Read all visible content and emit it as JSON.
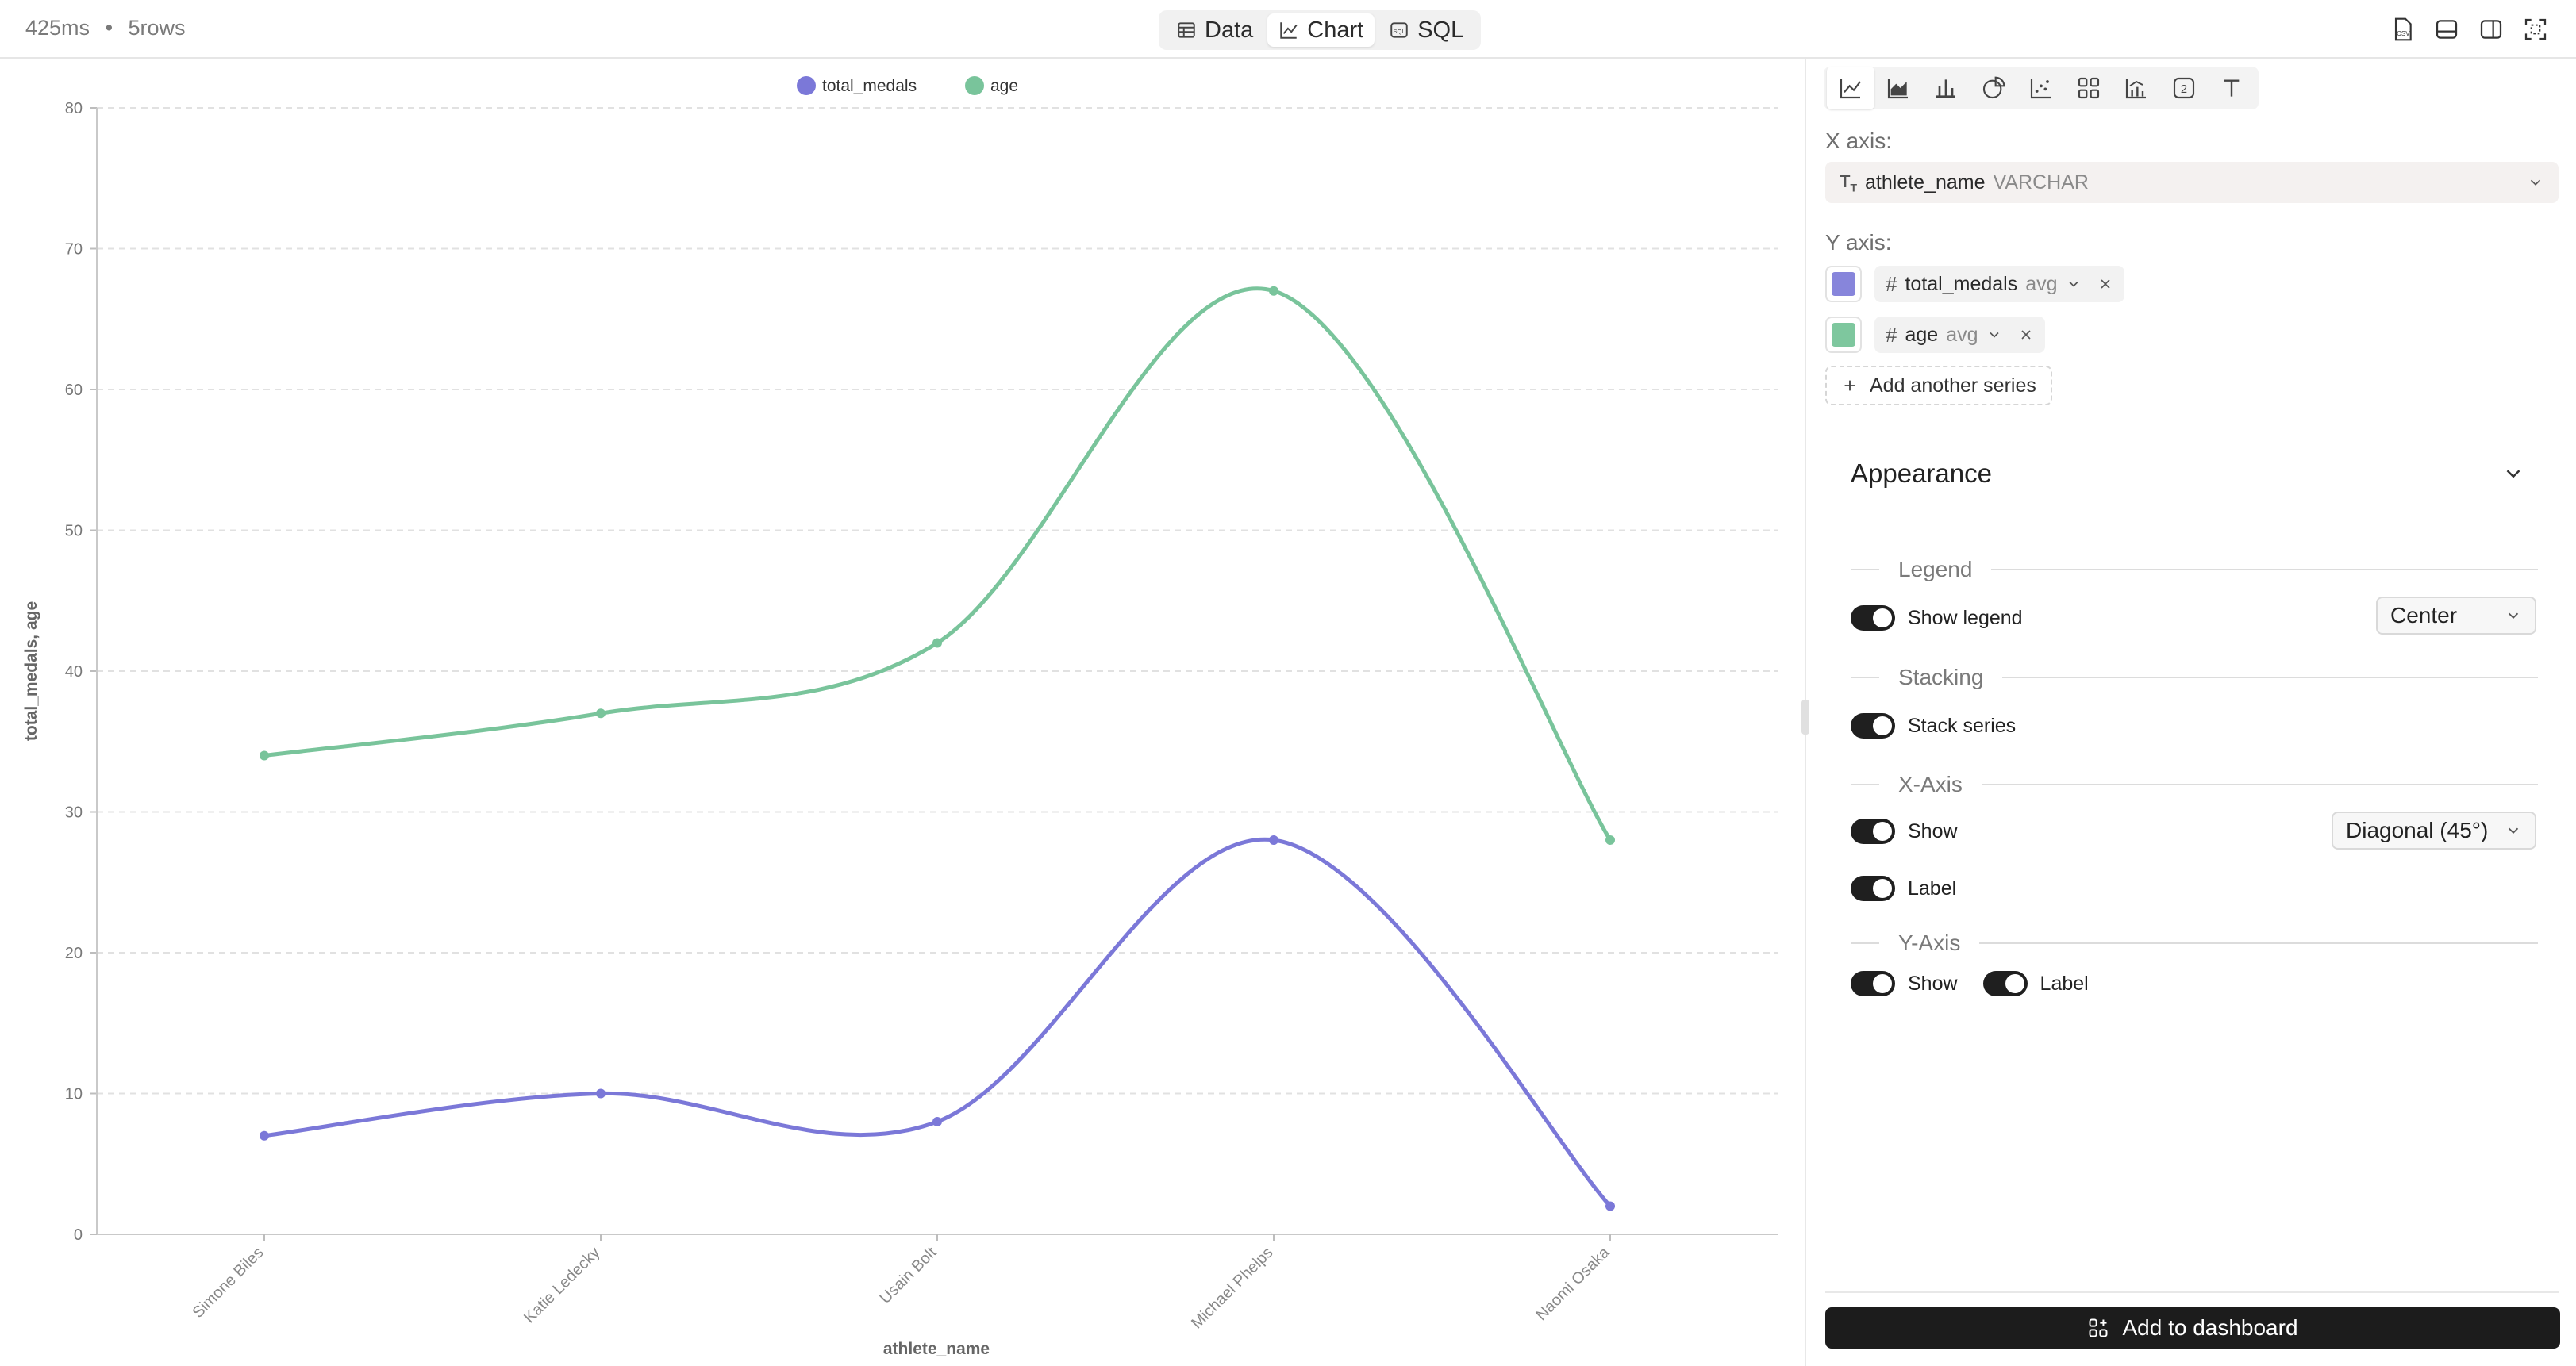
{
  "topbar": {
    "duration": "425ms",
    "separator": "•",
    "rows": "5rows",
    "tabs": [
      {
        "label": "Data",
        "icon": "table-icon"
      },
      {
        "label": "Chart",
        "icon": "line-chart-icon"
      },
      {
        "label": "SQL",
        "icon": "sql-icon"
      }
    ],
    "active_tab": "Chart",
    "right_icons": [
      "csv-download-icon",
      "bottom-panel-icon",
      "side-panel-icon",
      "fullscreen-icon"
    ]
  },
  "chart_data": {
    "type": "line",
    "curve": "smooth",
    "categories": [
      "Simone Biles",
      "Katie Ledecky",
      "Usain Bolt",
      "Michael Phelps",
      "Naomi Osaka"
    ],
    "series": [
      {
        "name": "total_medals",
        "values": [
          7,
          10,
          8,
          28,
          2
        ],
        "color": "#7b78d8"
      },
      {
        "name": "age",
        "values": [
          34,
          37,
          42,
          67,
          28
        ],
        "color": "#79c49b"
      }
    ],
    "xlabel": "athlete_name",
    "ylabel": "total_medals, age",
    "ylim": [
      0,
      80
    ],
    "yticks": [
      0,
      10,
      20,
      30,
      40,
      50,
      60,
      70,
      80
    ],
    "x_tick_rotation_deg": -45,
    "grid": "horizontal dashed",
    "legend": "top-center"
  },
  "panel": {
    "chart_type_icons": [
      "line-chart-icon",
      "area-chart-icon",
      "bar-chart-icon",
      "pie-chart-icon",
      "scatter-chart-icon",
      "grid-chart-icon",
      "combo-chart-icon",
      "number-icon",
      "text-icon"
    ],
    "active_chart_type": "line-chart-icon",
    "x_axis": {
      "label": "X axis:",
      "field": "athlete_name",
      "type": "VARCHAR"
    },
    "y_axis": {
      "label": "Y axis:",
      "series": [
        {
          "field": "total_medals",
          "agg": "avg",
          "color": "#8785db"
        },
        {
          "field": "age",
          "agg": "avg",
          "color": "#7ec79e"
        }
      ]
    },
    "add_series": "Add another series",
    "appearance": {
      "title": "Appearance",
      "legend": {
        "heading": "Legend",
        "show_label": "Show legend",
        "show": true,
        "position": "Center"
      },
      "stacking": {
        "heading": "Stacking",
        "label": "Stack series",
        "on": true
      },
      "x_axis": {
        "heading": "X-Axis",
        "show_label": "Show",
        "show": true,
        "label_label": "Label",
        "label": true,
        "rotation": "Diagonal (45°)"
      },
      "y_axis": {
        "heading": "Y-Axis",
        "show_label": "Show",
        "show": true,
        "label_label": "Label",
        "label": true
      }
    },
    "add_dashboard": "Add to dashboard"
  }
}
